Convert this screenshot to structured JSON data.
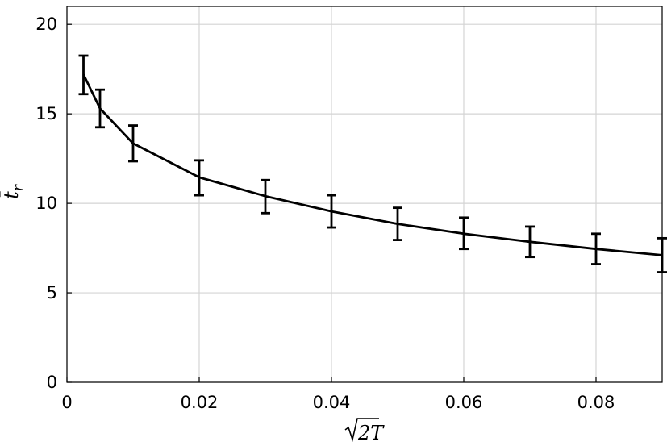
{
  "chart_data": {
    "type": "line",
    "xlabel": "√2T",
    "ylabel": "t̄_r",
    "xlim": [
      0,
      0.09
    ],
    "ylim": [
      0,
      21
    ],
    "grid": true,
    "x_ticks": [
      0,
      0.02,
      0.04,
      0.06,
      0.08
    ],
    "x_tick_labels": [
      "0",
      "0.02",
      "0.04",
      "0.06",
      "0.08"
    ],
    "y_ticks": [
      0,
      5,
      10,
      15,
      20
    ],
    "y_tick_labels": [
      "0",
      "5",
      "10",
      "15",
      "20"
    ],
    "series": [
      {
        "x": [
          0.0025,
          0.005,
          0.01,
          0.02,
          0.03,
          0.04,
          0.05,
          0.06,
          0.07,
          0.08,
          0.09
        ],
        "y": [
          17.2,
          15.3,
          13.35,
          11.45,
          10.4,
          9.55,
          8.85,
          8.3,
          7.85,
          7.45,
          7.1
        ],
        "yerr_low": [
          16.1,
          14.25,
          12.35,
          10.45,
          9.45,
          8.65,
          7.95,
          7.45,
          7.0,
          6.6,
          6.15
        ],
        "yerr_high": [
          18.25,
          16.35,
          14.35,
          12.4,
          11.3,
          10.45,
          9.75,
          9.2,
          8.7,
          8.3,
          8.05
        ]
      }
    ]
  }
}
